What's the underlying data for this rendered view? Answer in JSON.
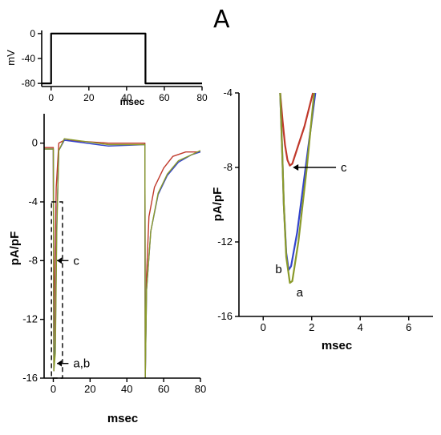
{
  "panel_label": "A",
  "chart_data": [
    {
      "id": "voltage",
      "type": "line",
      "xlabel": "msec",
      "ylabel": "mV",
      "xlim": [
        -5,
        80
      ],
      "ylim": [
        -85,
        5
      ],
      "xticks": [
        0,
        20,
        40,
        60,
        80
      ],
      "yticks": [
        0,
        -40,
        -80
      ],
      "series": [
        {
          "color": "#000000",
          "points": [
            [
              -5,
              -80
            ],
            [
              0,
              -80
            ],
            [
              0,
              0
            ],
            [
              50,
              0
            ],
            [
              50,
              -80
            ],
            [
              80,
              -80
            ]
          ]
        }
      ]
    },
    {
      "id": "current",
      "type": "line",
      "xlabel": "msec",
      "ylabel": "pA/pF",
      "xlim": [
        -5,
        80
      ],
      "ylim": [
        -16,
        2
      ],
      "xticks": [
        0,
        20,
        40,
        60,
        80
      ],
      "yticks": [
        0,
        -4,
        -8,
        -12,
        -16
      ],
      "series": [
        {
          "color": "#c0392b",
          "points": [
            [
              -5,
              -0.3
            ],
            [
              0,
              -0.3
            ],
            [
              0.3,
              -15.5
            ],
            [
              0.9,
              -8
            ],
            [
              1.6,
              -3
            ],
            [
              3,
              0
            ],
            [
              6,
              0.2
            ],
            [
              30,
              0
            ],
            [
              49.8,
              0
            ],
            [
              50,
              -16
            ],
            [
              50.7,
              -9
            ],
            [
              52,
              -5
            ],
            [
              55,
              -3
            ],
            [
              60,
              -1.7
            ],
            [
              65,
              -0.9
            ],
            [
              72,
              -0.6
            ],
            [
              80,
              -0.6
            ]
          ]
        },
        {
          "color": "#3344cc",
          "points": [
            [
              -5,
              -0.4
            ],
            [
              0,
              -0.4
            ],
            [
              0.3,
              -15.5
            ],
            [
              1.1,
              -13.6
            ],
            [
              1.8,
              -6
            ],
            [
              3,
              -0.5
            ],
            [
              6,
              0.2
            ],
            [
              30,
              -0.2
            ],
            [
              49.8,
              -0.1
            ],
            [
              50,
              -16
            ],
            [
              50.7,
              -10
            ],
            [
              53,
              -6
            ],
            [
              57,
              -3.5
            ],
            [
              62,
              -2.2
            ],
            [
              68,
              -1.3
            ],
            [
              75,
              -0.8
            ],
            [
              80,
              -0.6
            ]
          ]
        },
        {
          "color": "#8a9a2a",
          "points": [
            [
              -5,
              -0.4
            ],
            [
              0,
              -0.4
            ],
            [
              0.3,
              -15.5
            ],
            [
              1.1,
              -14.3
            ],
            [
              1.9,
              -6
            ],
            [
              3,
              -0.5
            ],
            [
              6,
              0.3
            ],
            [
              30,
              -0.1
            ],
            [
              49.8,
              -0.1
            ],
            [
              50,
              -16
            ],
            [
              50.7,
              -10
            ],
            [
              53,
              -6
            ],
            [
              57,
              -3.4
            ],
            [
              62,
              -2.1
            ],
            [
              68,
              -1.2
            ],
            [
              75,
              -0.8
            ],
            [
              80,
              -0.5
            ]
          ]
        }
      ],
      "zoom_box": {
        "x": [
          -1,
          5
        ],
        "y": [
          -16,
          -4
        ]
      },
      "annotations": [
        {
          "text": "c",
          "x": 10,
          "y": -8
        },
        {
          "text": "a,b",
          "x": 10,
          "y": -15
        }
      ]
    },
    {
      "id": "zoom",
      "type": "line",
      "xlabel": "msec",
      "ylabel": "pA/pF",
      "xlim": [
        -1,
        7
      ],
      "ylim": [
        -16,
        -4
      ],
      "xticks": [
        0,
        2,
        4,
        6
      ],
      "yticks": [
        -4,
        -8,
        -12,
        -16
      ],
      "series": [
        {
          "name": "c",
          "color": "#c0392b",
          "points": [
            [
              0.7,
              -4
            ],
            [
              0.8,
              -5.5
            ],
            [
              0.9,
              -6.8
            ],
            [
              1.0,
              -7.6
            ],
            [
              1.1,
              -7.9
            ],
            [
              1.2,
              -7.8
            ],
            [
              1.4,
              -7
            ],
            [
              1.7,
              -5.8
            ],
            [
              2.05,
              -4
            ]
          ]
        },
        {
          "name": "b",
          "color": "#3344cc",
          "points": [
            [
              0.7,
              -4
            ],
            [
              0.78,
              -7
            ],
            [
              0.85,
              -10
            ],
            [
              0.95,
              -12.6
            ],
            [
              1.05,
              -13.5
            ],
            [
              1.15,
              -13.3
            ],
            [
              1.4,
              -11.5
            ],
            [
              1.8,
              -7.5
            ],
            [
              2.15,
              -4
            ]
          ]
        },
        {
          "name": "a",
          "color": "#8a9a2a",
          "points": [
            [
              0.7,
              -4
            ],
            [
              0.78,
              -7
            ],
            [
              0.85,
              -10
            ],
            [
              0.95,
              -12.8
            ],
            [
              1.1,
              -14.2
            ],
            [
              1.2,
              -14.1
            ],
            [
              1.45,
              -12
            ],
            [
              1.8,
              -8
            ],
            [
              2.1,
              -4
            ]
          ]
        }
      ],
      "annotations": [
        {
          "text": "c",
          "x": 3.2,
          "y": -8
        },
        {
          "text": "b",
          "x": 0.7,
          "y": -13.5
        },
        {
          "text": "a",
          "x": 1.5,
          "y": -14.4
        }
      ]
    }
  ]
}
